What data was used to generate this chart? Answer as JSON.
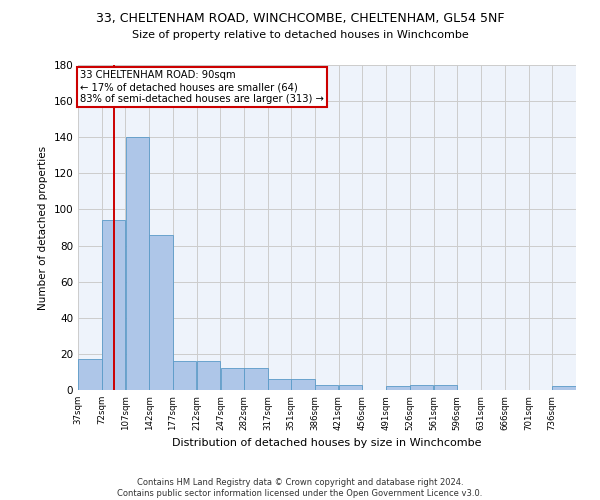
{
  "title_line1": "33, CHELTENHAM ROAD, WINCHCOMBE, CHELTENHAM, GL54 5NF",
  "title_line2": "Size of property relative to detached houses in Winchcombe",
  "xlabel": "Distribution of detached houses by size in Winchcombe",
  "ylabel": "Number of detached properties",
  "footnote": "Contains HM Land Registry data © Crown copyright and database right 2024.\nContains public sector information licensed under the Open Government Licence v3.0.",
  "bin_labels": [
    "37sqm",
    "72sqm",
    "107sqm",
    "142sqm",
    "177sqm",
    "212sqm",
    "247sqm",
    "282sqm",
    "317sqm",
    "351sqm",
    "386sqm",
    "421sqm",
    "456sqm",
    "491sqm",
    "526sqm",
    "561sqm",
    "596sqm",
    "631sqm",
    "666sqm",
    "701sqm",
    "736sqm"
  ],
  "bar_values": [
    17,
    94,
    140,
    86,
    16,
    16,
    12,
    12,
    6,
    6,
    3,
    3,
    0,
    2,
    3,
    3,
    0,
    0,
    0,
    0,
    2
  ],
  "bar_color": "#aec6e8",
  "bar_edge_color": "#5a9ac8",
  "grid_color": "#cccccc",
  "background_color": "#eef3fb",
  "property_line_x": 90,
  "property_line_color": "#cc0000",
  "annotation_line1": "33 CHELTENHAM ROAD: 90sqm",
  "annotation_line2": "← 17% of detached houses are smaller (64)",
  "annotation_line3": "83% of semi-detached houses are larger (313) →",
  "annotation_box_color": "#cc0000",
  "ylim": [
    0,
    180
  ],
  "yticks": [
    0,
    20,
    40,
    60,
    80,
    100,
    120,
    140,
    160,
    180
  ],
  "bin_edges": [
    37,
    72,
    107,
    142,
    177,
    212,
    247,
    282,
    317,
    351,
    386,
    421,
    456,
    491,
    526,
    561,
    596,
    631,
    666,
    701,
    736
  ]
}
